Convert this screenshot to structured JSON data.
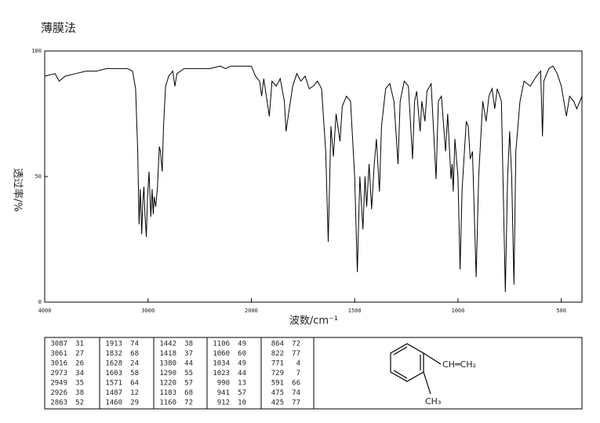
{
  "chart_data": {
    "type": "line",
    "title": "薄膜法",
    "ylabel": "透过率/%",
    "xlabel": "波数/cm⁻¹",
    "color": "#000000",
    "xlim": [
      4000,
      400
    ],
    "x_scale_change_at": 2000,
    "xticks": [
      4000,
      3000,
      2000,
      1500,
      1000,
      500
    ],
    "ylim": [
      0,
      100
    ],
    "yticks": [
      0,
      50,
      100
    ],
    "x": [
      4000,
      3900,
      3860,
      3800,
      3700,
      3600,
      3500,
      3400,
      3300,
      3200,
      3150,
      3120,
      3100,
      3087,
      3075,
      3061,
      3050,
      3040,
      3030,
      3016,
      3005,
      2990,
      2973,
      2960,
      2949,
      2940,
      2926,
      2910,
      2890,
      2880,
      2863,
      2850,
      2830,
      2800,
      2760,
      2740,
      2720,
      2650,
      2500,
      2400,
      2300,
      2250,
      2200,
      2100,
      2000,
      1980,
      1960,
      1950,
      1940,
      1913,
      1900,
      1880,
      1860,
      1840,
      1832,
      1820,
      1800,
      1780,
      1760,
      1740,
      1720,
      1700,
      1680,
      1660,
      1640,
      1628,
      1615,
      1603,
      1590,
      1571,
      1560,
      1540,
      1520,
      1500,
      1487,
      1475,
      1460,
      1450,
      1442,
      1430,
      1418,
      1405,
      1395,
      1380,
      1370,
      1350,
      1330,
      1310,
      1290,
      1280,
      1260,
      1240,
      1220,
      1210,
      1200,
      1183,
      1175,
      1160,
      1150,
      1130,
      1106,
      1095,
      1080,
      1060,
      1050,
      1034,
      1028,
      1023,
      1015,
      1000,
      990,
      980,
      960,
      950,
      941,
      930,
      912,
      900,
      880,
      864,
      850,
      835,
      822,
      810,
      790,
      771,
      760,
      750,
      740,
      729,
      720,
      700,
      680,
      650,
      620,
      600,
      591,
      585,
      560,
      540,
      520,
      500,
      475,
      460,
      440,
      425,
      410,
      400
    ],
    "values": [
      90,
      91,
      88,
      90,
      91,
      92,
      92,
      93,
      93,
      93,
      92,
      85,
      60,
      31,
      45,
      27,
      40,
      46,
      35,
      26,
      42,
      52,
      34,
      45,
      35,
      42,
      38,
      45,
      62,
      60,
      52,
      70,
      86,
      90,
      92,
      86,
      91,
      93,
      93,
      93,
      94,
      93,
      94,
      94,
      94,
      90,
      88,
      82,
      89,
      74,
      88,
      86,
      89,
      80,
      68,
      75,
      86,
      91,
      88,
      90,
      85,
      86,
      88,
      85,
      60,
      24,
      70,
      58,
      75,
      64,
      78,
      82,
      80,
      50,
      12,
      50,
      29,
      50,
      38,
      55,
      37,
      55,
      65,
      44,
      70,
      85,
      87,
      80,
      55,
      80,
      88,
      86,
      57,
      80,
      84,
      68,
      80,
      72,
      84,
      87,
      49,
      80,
      82,
      60,
      75,
      49,
      55,
      44,
      65,
      50,
      13,
      45,
      72,
      70,
      57,
      60,
      10,
      50,
      80,
      72,
      82,
      85,
      77,
      85,
      80,
      4,
      50,
      68,
      50,
      7,
      60,
      80,
      88,
      86,
      90,
      92,
      66,
      88,
      93,
      94,
      91,
      86,
      74,
      82,
      80,
      77,
      80,
      82
    ]
  },
  "peak_table": {
    "columns": [
      [
        [
          3087,
          31
        ],
        [
          3061,
          27
        ],
        [
          3016,
          26
        ],
        [
          2973,
          34
        ],
        [
          2949,
          35
        ],
        [
          2926,
          38
        ],
        [
          2863,
          52
        ]
      ],
      [
        [
          1913,
          74
        ],
        [
          1832,
          68
        ],
        [
          1628,
          24
        ],
        [
          1603,
          58
        ],
        [
          1571,
          64
        ],
        [
          1487,
          12
        ],
        [
          1460,
          29
        ]
      ],
      [
        [
          1442,
          38
        ],
        [
          1418,
          37
        ],
        [
          1380,
          44
        ],
        [
          1290,
          55
        ],
        [
          1220,
          57
        ],
        [
          1183,
          68
        ],
        [
          1160,
          72
        ]
      ],
      [
        [
          1106,
          49
        ],
        [
          1060,
          60
        ],
        [
          1034,
          49
        ],
        [
          1023,
          44
        ],
        [
          990,
          13
        ],
        [
          941,
          57
        ],
        [
          912,
          10
        ]
      ],
      [
        [
          864,
          72
        ],
        [
          822,
          77
        ],
        [
          771,
          4
        ],
        [
          729,
          7
        ],
        [
          591,
          66
        ],
        [
          475,
          74
        ],
        [
          425,
          77
        ]
      ]
    ]
  },
  "structure": {
    "vinyl": "CH═CH₂",
    "methyl": "CH₃"
  }
}
